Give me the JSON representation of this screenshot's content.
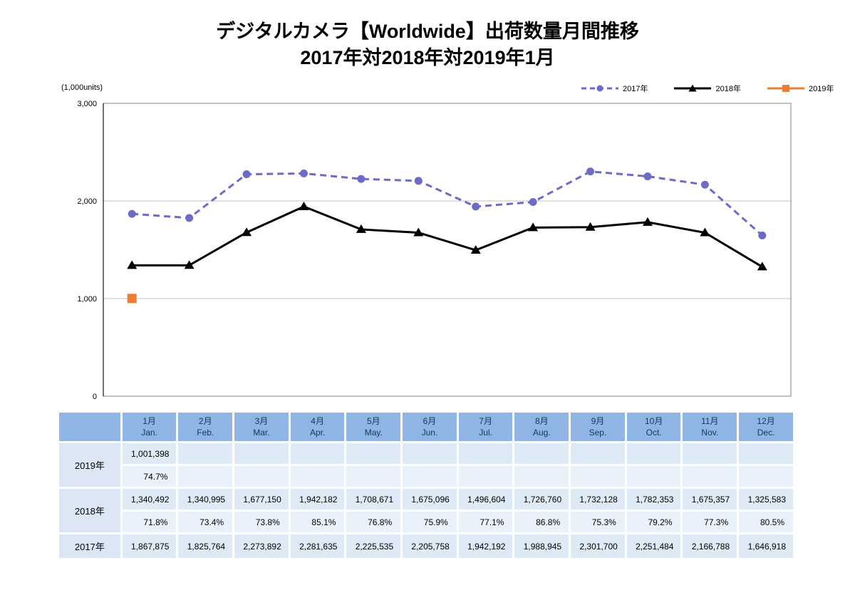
{
  "title": {
    "line1": "デジタルカメラ【Worldwide】出荷数量月間推移",
    "line2": "2017年対2018年対2019年1月"
  },
  "unit_label": "(1,000units)",
  "colors": {
    "grid": "#C0C0C0",
    "plot_border": "#808080",
    "axis": "#404040",
    "header_bg": "#8EB5E4",
    "label_bg": "#DCE6F4",
    "value_bg": "#DEEBF7",
    "percent_bg": "#E9F2FB"
  },
  "chart_data": {
    "type": "line",
    "title": "デジタルカメラ【Worldwide】出荷数量月間推移 2017年対2018年対2019年1月",
    "xlabel": "",
    "ylabel": "(1,000units)",
    "categories": [
      "1月",
      "2月",
      "3月",
      "4月",
      "5月",
      "6月",
      "7月",
      "8月",
      "9月",
      "10月",
      "11月",
      "12月"
    ],
    "categories_en": [
      "Jan.",
      "Feb.",
      "Mar.",
      "Apr.",
      "May.",
      "Jun.",
      "Jul.",
      "Aug.",
      "Sep.",
      "Oct.",
      "Nov.",
      "Dec."
    ],
    "ylim": [
      0,
      3000
    ],
    "yticks": [
      0,
      1000,
      2000,
      3000
    ],
    "ytick_labels": [
      "0",
      "1,000",
      "2,000",
      "3,000"
    ],
    "grid": true,
    "legend_position": "top-right",
    "series": [
      {
        "name": "2017年",
        "color": "#6C6CC6",
        "line_style": "dashed",
        "marker": "circle",
        "values": [
          1867.875,
          1825.764,
          2273.892,
          2281.635,
          2225.535,
          2205.758,
          1942.192,
          1988.945,
          2301.7,
          2251.484,
          2166.788,
          1646.918
        ]
      },
      {
        "name": "2018年",
        "color": "#000000",
        "line_style": "solid",
        "marker": "triangle",
        "values": [
          1340.492,
          1340.995,
          1677.15,
          1942.182,
          1708.671,
          1675.096,
          1496.604,
          1726.76,
          1732.128,
          1782.353,
          1675.357,
          1325.583
        ]
      },
      {
        "name": "2019年",
        "color": "#ED7D31",
        "line_style": "solid",
        "marker": "square",
        "values": [
          1001.398,
          null,
          null,
          null,
          null,
          null,
          null,
          null,
          null,
          null,
          null,
          null
        ]
      }
    ]
  },
  "table": {
    "months_jp": [
      "1月",
      "2月",
      "3月",
      "4月",
      "5月",
      "6月",
      "7月",
      "8月",
      "9月",
      "10月",
      "11月",
      "12月"
    ],
    "months_en": [
      "Jan.",
      "Feb.",
      "Mar.",
      "Apr.",
      "May.",
      "Jun.",
      "Jul.",
      "Aug.",
      "Sep.",
      "Oct.",
      "Nov.",
      "Dec."
    ],
    "rows": [
      {
        "label": "2019年",
        "values": [
          "1,001,398",
          "",
          "",
          "",
          "",
          "",
          "",
          "",
          "",
          "",
          "",
          ""
        ],
        "percents": [
          "74.7%",
          "",
          "",
          "",
          "",
          "",
          "",
          "",
          "",
          "",
          "",
          ""
        ]
      },
      {
        "label": "2018年",
        "values": [
          "1,340,492",
          "1,340,995",
          "1,677,150",
          "1,942,182",
          "1,708,671",
          "1,675,096",
          "1,496,604",
          "1,726,760",
          "1,732,128",
          "1,782,353",
          "1,675,357",
          "1,325,583"
        ],
        "percents": [
          "71.8%",
          "73.4%",
          "73.8%",
          "85.1%",
          "76.8%",
          "75.9%",
          "77.1%",
          "86.8%",
          "75.3%",
          "79.2%",
          "77.3%",
          "80.5%"
        ]
      },
      {
        "label": "2017年",
        "values": [
          "1,867,875",
          "1,825,764",
          "2,273,892",
          "2,281,635",
          "2,225,535",
          "2,205,758",
          "1,942,192",
          "1,988,945",
          "2,301,700",
          "2,251,484",
          "2,166,788",
          "1,646,918"
        ]
      }
    ]
  }
}
